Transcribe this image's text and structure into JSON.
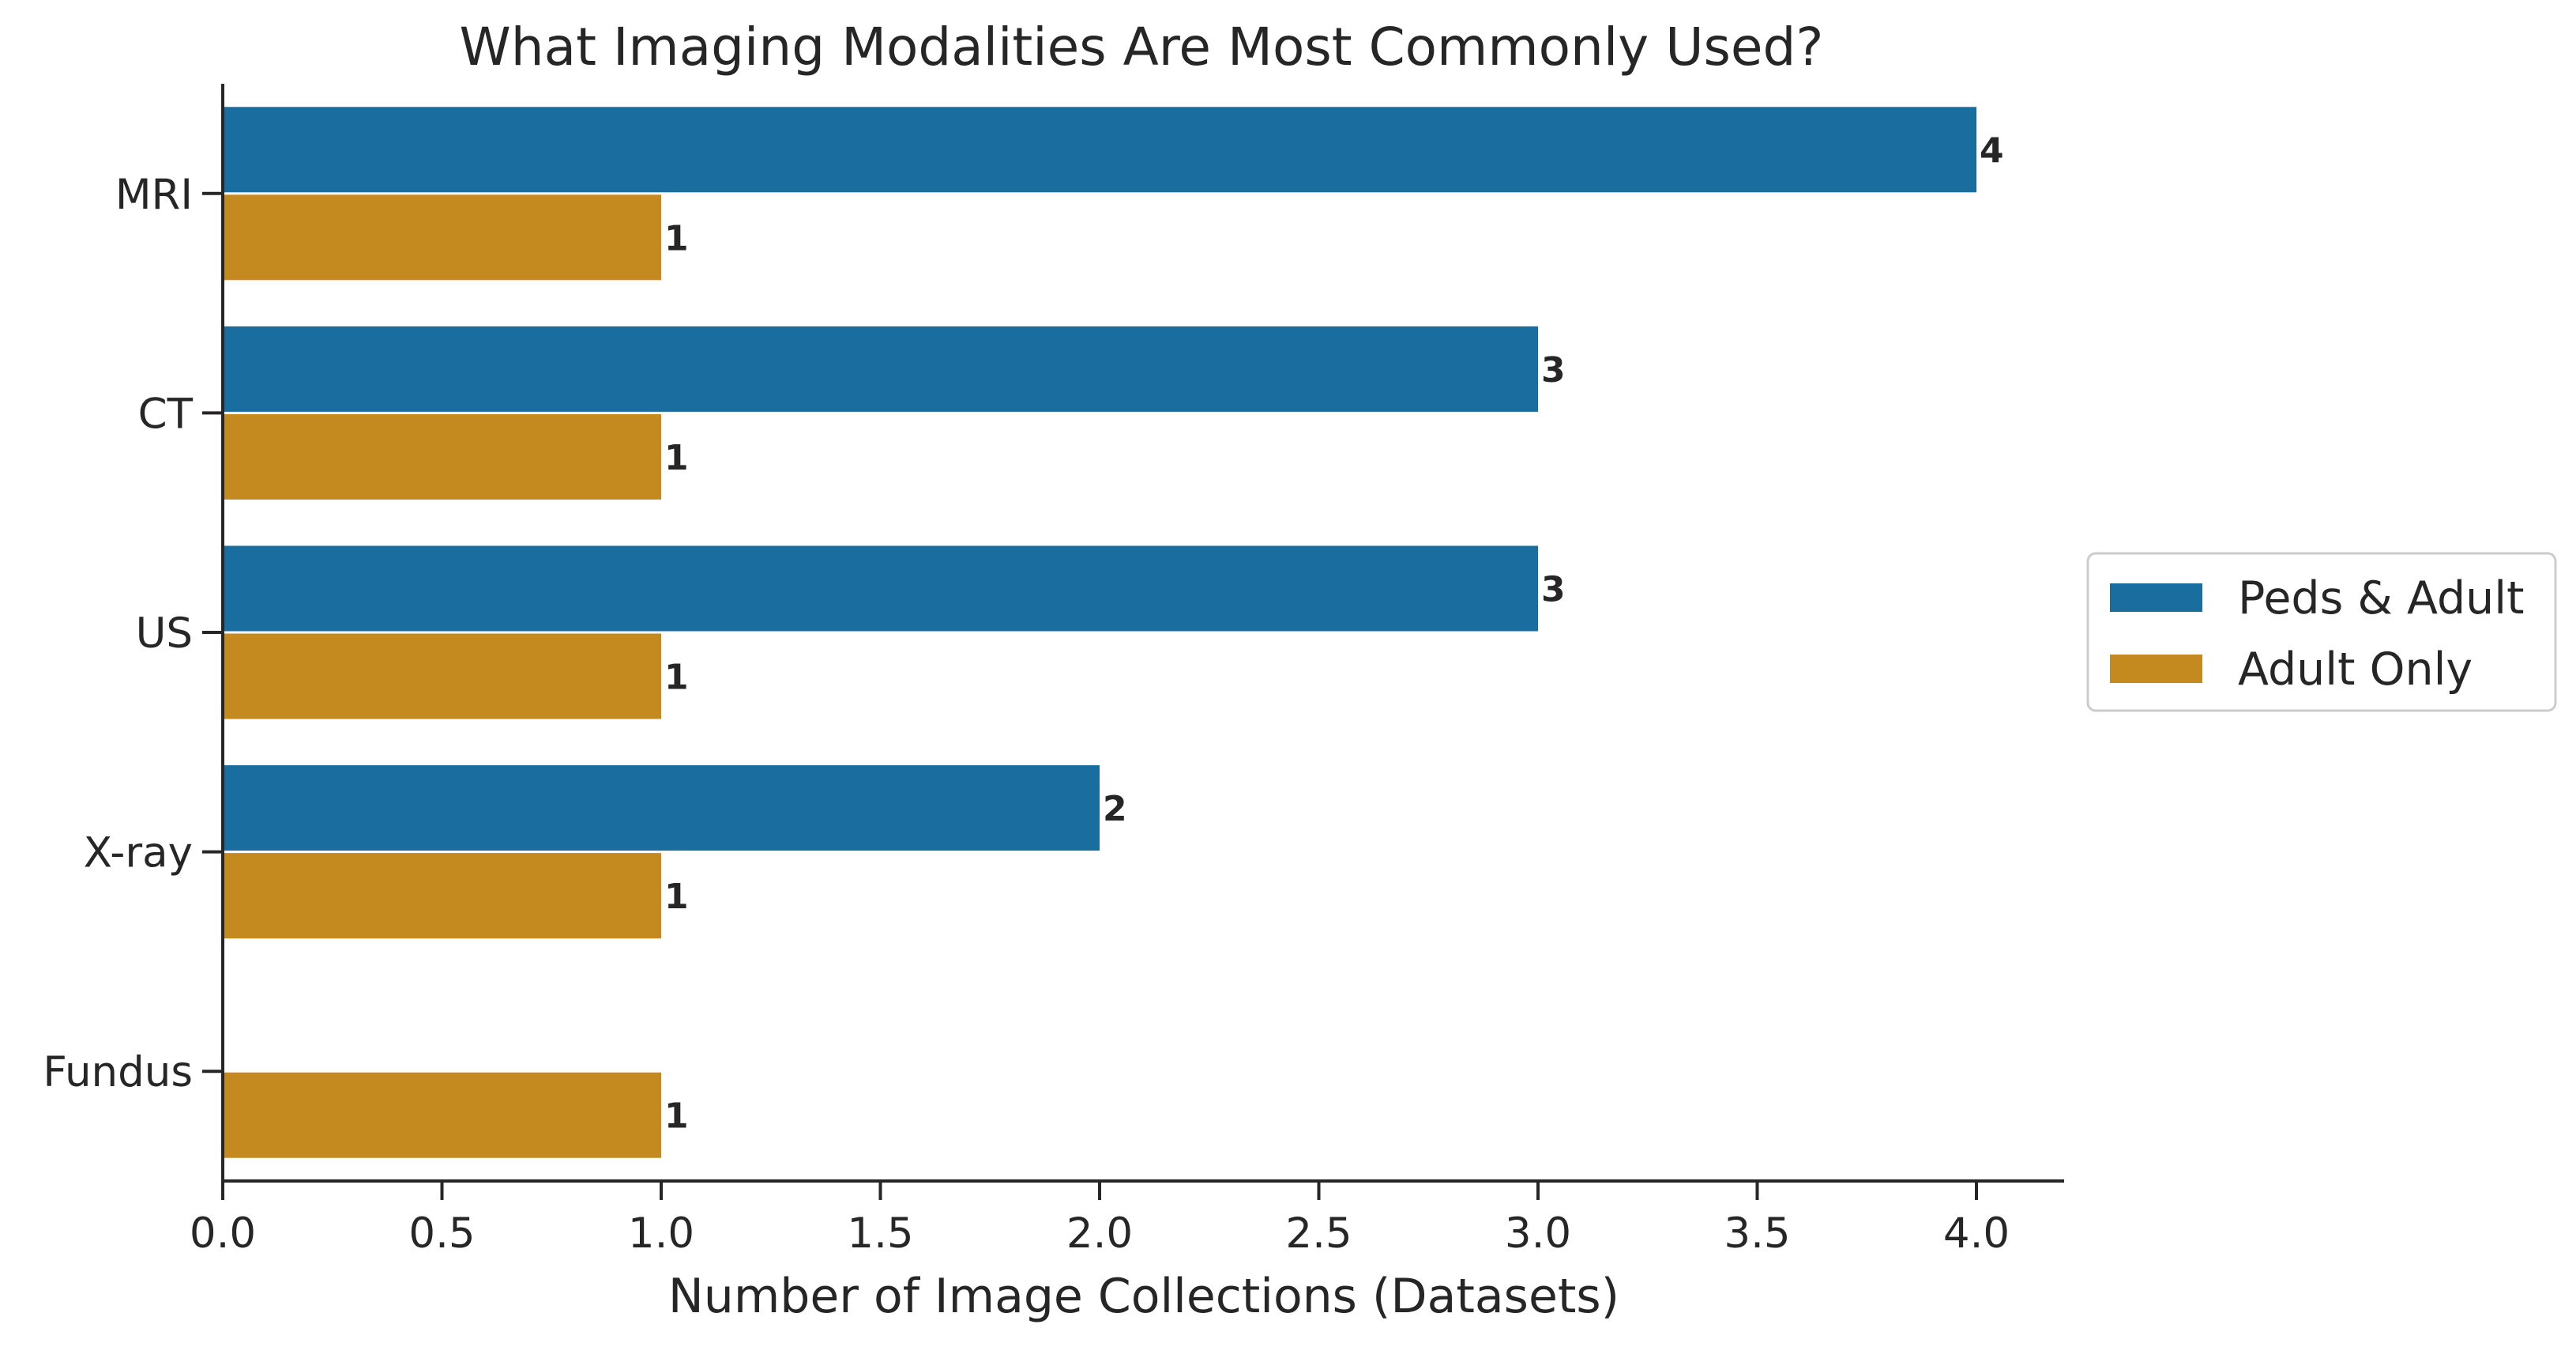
{
  "chart_data": {
    "type": "bar",
    "orientation": "horizontal",
    "title": "What Imaging Modalities Are Most Commonly Used?",
    "xlabel": "Number of Image Collections (Datasets)",
    "ylabel": "",
    "categories": [
      "MRI",
      "CT",
      "US",
      "X-ray",
      "Fundus"
    ],
    "series": [
      {
        "name": "Peds & Adult",
        "values": [
          4,
          3,
          3,
          2,
          null
        ],
        "color": "#1a6e9f"
      },
      {
        "name": "Adult Only",
        "values": [
          1,
          1,
          1,
          1,
          1
        ],
        "color": "#c58a1f"
      }
    ],
    "xlim": [
      0,
      4.2
    ],
    "xticks": [
      0.0,
      0.5,
      1.0,
      1.5,
      2.0,
      2.5,
      3.0,
      3.5,
      4.0
    ],
    "xtick_labels": [
      "0.0",
      "0.5",
      "1.0",
      "1.5",
      "2.0",
      "2.5",
      "3.0",
      "3.5",
      "4.0"
    ],
    "data_labels": true,
    "grid": false,
    "legend_position": "right"
  }
}
